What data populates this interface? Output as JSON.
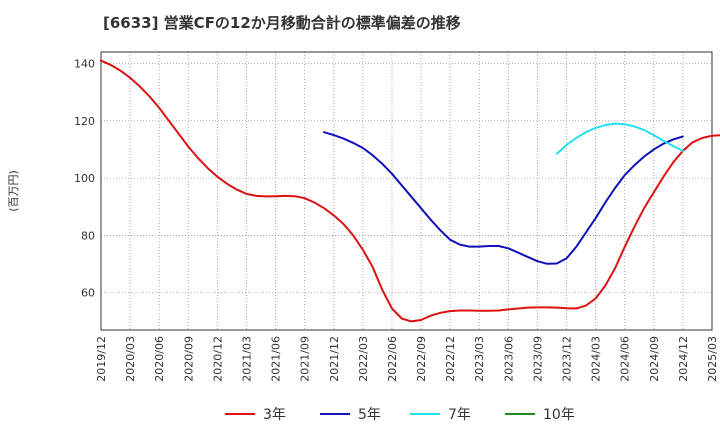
{
  "chart_data": {
    "type": "line",
    "title": "[6633]  営業CFの12か月移動合計の標準偏差の推移",
    "ylabel": "(百万円)",
    "xlabel": "",
    "ylim": [
      47,
      144
    ],
    "yticks": [
      60,
      80,
      100,
      120,
      140
    ],
    "xlim": [
      "2019-12",
      "2025-03"
    ],
    "xticks": [
      "2019/12",
      "2020/03",
      "2020/06",
      "2020/09",
      "2020/12",
      "2021/03",
      "2021/06",
      "2021/09",
      "2021/12",
      "2022/03",
      "2022/06",
      "2022/09",
      "2022/12",
      "2023/03",
      "2023/06",
      "2023/09",
      "2023/12",
      "2024/03",
      "2024/06",
      "2024/09",
      "2024/12",
      "2025/03"
    ],
    "grid": true,
    "legend_position": "bottom",
    "series": [
      {
        "name": "3年",
        "color": "#dd1111",
        "points": [
          [
            "2019-12",
            141
          ],
          [
            "2020-01",
            139.5
          ],
          [
            "2020-02",
            137.5
          ],
          [
            "2020-03",
            135
          ],
          [
            "2020-04",
            132
          ],
          [
            "2020-05",
            128.5
          ],
          [
            "2020-06",
            124.5
          ],
          [
            "2020-07",
            120
          ],
          [
            "2020-08",
            115.5
          ],
          [
            "2020-09",
            111
          ],
          [
            "2020-10",
            107
          ],
          [
            "2020-11",
            103.5
          ],
          [
            "2020-12",
            100.5
          ],
          [
            "2021-01",
            98
          ],
          [
            "2021-02",
            96
          ],
          [
            "2021-03",
            94.5
          ],
          [
            "2021-04",
            93.8
          ],
          [
            "2021-05",
            93.6
          ],
          [
            "2021-06",
            93.7
          ],
          [
            "2021-07",
            93.8
          ],
          [
            "2021-08",
            93.7
          ],
          [
            "2021-09",
            93
          ],
          [
            "2021-10",
            91.5
          ],
          [
            "2021-11",
            89.5
          ],
          [
            "2021-12",
            87
          ],
          [
            "2022-01",
            84
          ],
          [
            "2022-02",
            80
          ],
          [
            "2022-03",
            75
          ],
          [
            "2022-04",
            69
          ],
          [
            "2022-05",
            61
          ],
          [
            "2022-06",
            54.5
          ],
          [
            "2022-07",
            51
          ],
          [
            "2022-08",
            50
          ],
          [
            "2022-09",
            50.5
          ],
          [
            "2022-10",
            52
          ],
          [
            "2022-11",
            53
          ],
          [
            "2022-12",
            53.6
          ],
          [
            "2023-01",
            53.8
          ],
          [
            "2023-02",
            53.8
          ],
          [
            "2023-03",
            53.7
          ],
          [
            "2023-04",
            53.7
          ],
          [
            "2023-05",
            53.8
          ],
          [
            "2023-06",
            54.2
          ],
          [
            "2023-07",
            54.5
          ],
          [
            "2023-08",
            54.8
          ],
          [
            "2023-09",
            54.9
          ],
          [
            "2023-10",
            54.9
          ],
          [
            "2023-11",
            54.8
          ],
          [
            "2023-12",
            54.6
          ],
          [
            "2024-01",
            54.5
          ],
          [
            "2024-02",
            55.5
          ],
          [
            "2024-03",
            58
          ],
          [
            "2024-04",
            62.5
          ],
          [
            "2024-05",
            68.5
          ],
          [
            "2024-06",
            76
          ],
          [
            "2024-07",
            83
          ],
          [
            "2024-08",
            89.5
          ],
          [
            "2024-09",
            95
          ],
          [
            "2024-10",
            100.5
          ],
          [
            "2024-11",
            105.5
          ],
          [
            "2024-12",
            109.5
          ],
          [
            "2025-01",
            112.5
          ],
          [
            "2025-02",
            114
          ],
          [
            "2025-03",
            114.8
          ],
          [
            "2025-04",
            115
          ],
          [
            "2025-05",
            114.5
          ]
        ]
      },
      {
        "name": "5年",
        "color": "#1111bb",
        "points": [
          [
            "2021-11",
            116
          ],
          [
            "2021-12",
            115
          ],
          [
            "2022-01",
            113.8
          ],
          [
            "2022-02",
            112.3
          ],
          [
            "2022-03",
            110.5
          ],
          [
            "2022-04",
            108
          ],
          [
            "2022-05",
            105
          ],
          [
            "2022-06",
            101.5
          ],
          [
            "2022-07",
            97.5
          ],
          [
            "2022-08",
            93.5
          ],
          [
            "2022-09",
            89.5
          ],
          [
            "2022-10",
            85.5
          ],
          [
            "2022-11",
            81.8
          ],
          [
            "2022-12",
            78.5
          ],
          [
            "2023-01",
            76.8
          ],
          [
            "2023-02",
            76.1
          ],
          [
            "2023-03",
            76.1
          ],
          [
            "2023-04",
            76.3
          ],
          [
            "2023-05",
            76.3
          ],
          [
            "2023-06",
            75.5
          ],
          [
            "2023-07",
            74
          ],
          [
            "2023-08",
            72.5
          ],
          [
            "2023-09",
            71
          ],
          [
            "2023-10",
            70.1
          ],
          [
            "2023-11",
            70.2
          ],
          [
            "2023-12",
            72
          ],
          [
            "2024-01",
            76
          ],
          [
            "2024-02",
            81
          ],
          [
            "2024-03",
            86
          ],
          [
            "2024-04",
            91.5
          ],
          [
            "2024-05",
            96.5
          ],
          [
            "2024-06",
            101
          ],
          [
            "2024-07",
            104.5
          ],
          [
            "2024-08",
            107.5
          ],
          [
            "2024-09",
            110
          ],
          [
            "2024-10",
            112
          ],
          [
            "2024-11",
            113.5
          ],
          [
            "2024-12",
            114.5
          ]
        ]
      },
      {
        "name": "7年",
        "color": "#22e0f0",
        "points": [
          [
            "2023-11",
            108.5
          ],
          [
            "2023-12",
            111.5
          ],
          [
            "2024-01",
            114
          ],
          [
            "2024-02",
            116
          ],
          [
            "2024-03",
            117.5
          ],
          [
            "2024-04",
            118.5
          ],
          [
            "2024-05",
            119
          ],
          [
            "2024-06",
            118.8
          ],
          [
            "2024-07",
            118
          ],
          [
            "2024-08",
            116.8
          ],
          [
            "2024-09",
            115
          ],
          [
            "2024-10",
            113
          ],
          [
            "2024-11",
            111.2
          ],
          [
            "2024-12",
            109.5
          ]
        ]
      },
      {
        "name": "10年",
        "color": "#228822",
        "points": []
      }
    ]
  }
}
